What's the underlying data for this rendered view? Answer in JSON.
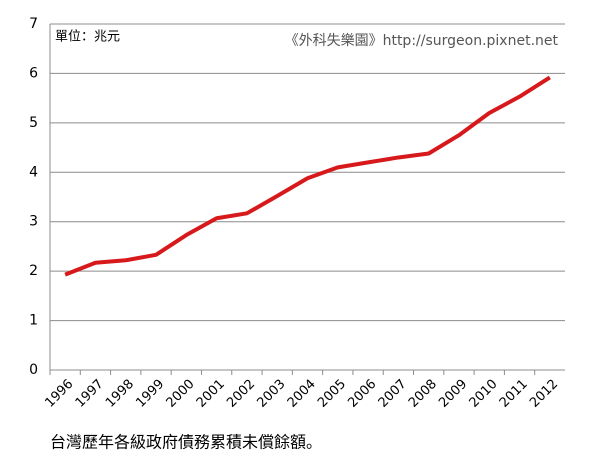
{
  "chart_data": {
    "type": "line",
    "unit_label": "單位：兆元",
    "annotation": "《外科失樂園》http://surgeon.pixnet.net",
    "caption": "台灣歷年各級政府債務累積未償餘額。",
    "categories": [
      "1996",
      "1997",
      "1998",
      "1999",
      "2000",
      "2001",
      "2002",
      "2003",
      "2004",
      "2005",
      "2006",
      "2007",
      "2008",
      "2009",
      "2010",
      "2011",
      "2012"
    ],
    "series": [
      {
        "name": "債務",
        "color": "#d7191c",
        "values": [
          1.93,
          2.17,
          2.22,
          2.33,
          2.73,
          3.07,
          3.17,
          3.52,
          3.88,
          4.1,
          4.2,
          4.3,
          4.38,
          4.75,
          5.2,
          5.53,
          5.92
        ]
      }
    ],
    "ylim": [
      0,
      7
    ],
    "yticks": [
      0,
      1,
      2,
      3,
      4,
      5,
      6,
      7
    ],
    "grid": true
  }
}
